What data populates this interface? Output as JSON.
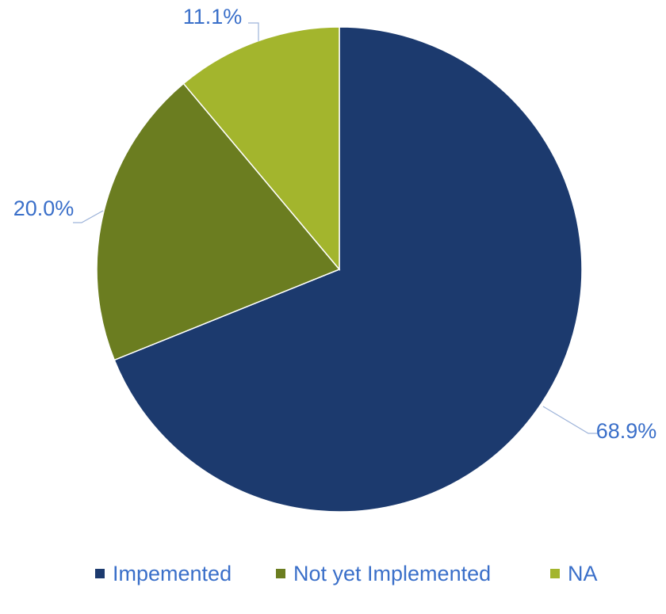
{
  "chart_data": {
    "type": "pie",
    "slices": [
      {
        "label": "Impemented",
        "value": 68.9,
        "display": "68.9%",
        "color": "#1c3a6e"
      },
      {
        "label": "Not yet Implemented",
        "value": 20.0,
        "display": "20.0%",
        "color": "#6b7d20"
      },
      {
        "label": "NA",
        "value": 11.1,
        "display": "11.1%",
        "color": "#a3b52d"
      }
    ],
    "start_angle_deg": 0,
    "direction": "clockwise",
    "legend_position": "bottom",
    "label_color": "#3a6fc9",
    "leader_line_color": "#9db3d9"
  }
}
